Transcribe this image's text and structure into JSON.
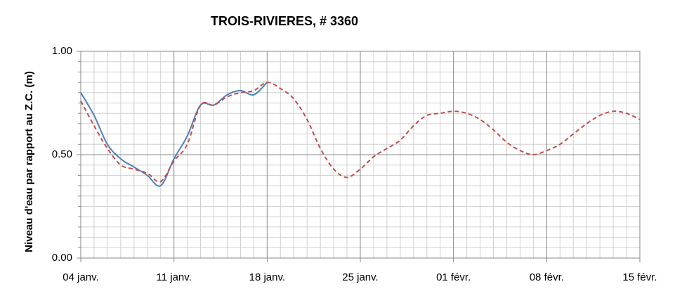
{
  "chart_data": {
    "type": "line",
    "title": "TROIS-RIVIERES, # 3360",
    "y_label": "Niveau d'eau par rapport au Z.C. (m)",
    "categories": [
      "04 janv.",
      null,
      null,
      null,
      null,
      null,
      null,
      "11 janv.",
      null,
      null,
      null,
      null,
      null,
      null,
      "18 janv.",
      null,
      null,
      null,
      null,
      null,
      null,
      "25 janv.",
      null,
      null,
      null,
      null,
      null,
      null,
      "01 févr.",
      null,
      null,
      null,
      null,
      null,
      null,
      "08 févr.",
      null,
      null,
      null,
      null,
      null,
      null,
      "15 févr."
    ],
    "series": [
      {
        "color": "#4f81bd",
        "dash": false,
        "values": [
          0.8,
          0.69,
          0.55,
          0.48,
          0.44,
          0.4,
          0.35,
          0.48,
          0.59,
          0.74,
          0.74,
          0.79,
          0.81,
          0.79,
          0.85,
          null,
          null,
          null,
          null,
          null,
          null,
          null,
          null,
          null,
          null,
          null,
          null,
          null,
          null,
          null,
          null,
          null,
          null,
          null,
          null,
          null,
          null,
          null,
          null,
          null,
          null,
          null,
          null
        ]
      },
      {
        "color": "#c0504d",
        "dash": true,
        "values": [
          0.76,
          0.64,
          0.53,
          0.45,
          0.43,
          0.41,
          0.37,
          0.47,
          0.55,
          0.74,
          0.74,
          0.78,
          0.8,
          0.81,
          0.85,
          0.82,
          0.77,
          0.67,
          0.53,
          0.43,
          0.39,
          0.43,
          0.49,
          0.53,
          0.57,
          0.64,
          0.69,
          0.7,
          0.71,
          0.7,
          0.67,
          0.62,
          0.56,
          0.52,
          0.5,
          0.52,
          0.55,
          0.6,
          0.65,
          0.69,
          0.71,
          0.7,
          0.67
        ]
      }
    ],
    "ylim": [
      0,
      1
    ],
    "yticks": [
      {
        "value": 0,
        "label": "0.00"
      },
      {
        "value": 0.5,
        "label": "0.50"
      },
      {
        "value": 1,
        "label": "1.00"
      }
    ],
    "minor_yticks": [
      0.05,
      0.1,
      0.15,
      0.2,
      0.25,
      0.3,
      0.35,
      0.4,
      0.45,
      0.55,
      0.6,
      0.65,
      0.7,
      0.75,
      0.8,
      0.85,
      0.9,
      0.95
    ],
    "grid": true
  }
}
